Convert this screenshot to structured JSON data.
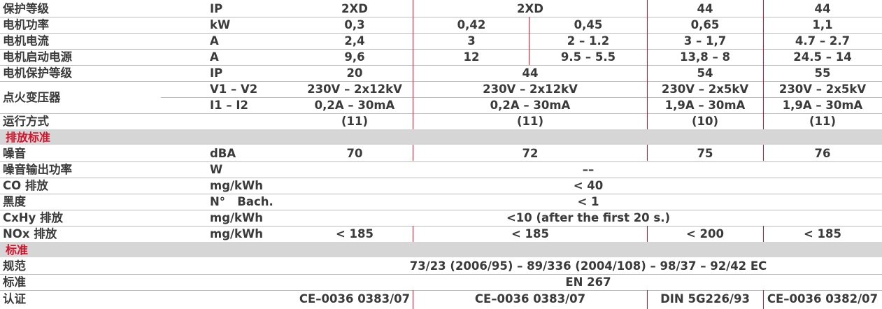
{
  "rows": {
    "protection": {
      "label": "保护等级",
      "unit": "IP",
      "v1": "2XD",
      "v2": "2XD",
      "v3": "44",
      "v4": "44"
    },
    "motor_power": {
      "label": "电机功率",
      "unit": "kW",
      "v1": "0,3",
      "v2a": "0,42",
      "v2b": "0,45",
      "v3": "0,65",
      "v4": "1,1"
    },
    "motor_current": {
      "label": "电机电流",
      "unit": "A",
      "v1": "2,4",
      "v2a": "3",
      "v2b": "2 – 1.2",
      "v3": "3 – 1,7",
      "v4": "4.7 – 2.7"
    },
    "motor_start": {
      "label": "电机启动电源",
      "unit": "A",
      "v1": "9,6",
      "v2a": "12",
      "v2b": "9.5 – 5.5",
      "v3": "13,8 – 8",
      "v4": "24.5 – 14"
    },
    "motor_ip": {
      "label": "电机保护等级",
      "unit": "IP",
      "v1": "20",
      "v2": "44",
      "v3": "54",
      "v4": "55"
    },
    "ignition": {
      "label": "点火变压器",
      "unit1": "V1 – V2",
      "v1_1": "230V – 2x12kV",
      "v2_1": "230V – 2x12kV",
      "v3_1": "230V – 2x5kV",
      "v4_1": "230V – 2x5kV",
      "unit2": "I1 – I2",
      "v1_2": "0,2A – 30mA",
      "v2_2": "0,2A – 30mA",
      "v3_2": "1,9A – 30mA",
      "v4_2": "1,9A – 30mA"
    },
    "operation": {
      "label": "运行方式",
      "v1": "(11)",
      "v2": "(11)",
      "v3": "(10)",
      "v4": "(11)"
    },
    "noise": {
      "label": "噪音",
      "unit": "dBA",
      "v1": "70",
      "v2": "72",
      "v3": "75",
      "v4": "76"
    },
    "noise_power": {
      "label": "噪音输出功率",
      "unit": "W",
      "value": "––"
    },
    "co": {
      "label": "CO 排放",
      "unit": "mg/kWh",
      "value": "< 40"
    },
    "smoke": {
      "label": "黑度",
      "unit": "N°   Bach.",
      "value": "< 1"
    },
    "cxhy": {
      "label": "CxHy 排放",
      "unit": "mg/kWh",
      "value": "<10 (after the first 20 s.)"
    },
    "nox": {
      "label": "NOx 排放",
      "unit": "mg/kWh",
      "v1": "< 185",
      "v2": "< 185",
      "v3": "< 200",
      "v4": "< 185"
    },
    "directive": {
      "label": "规范",
      "value": "73/23 (2006/95) – 89/336 (2004/108) – 98/37 – 92/42 EC"
    },
    "standard": {
      "label": "标准",
      "value": "EN 267"
    },
    "cert": {
      "label": "认证",
      "v1": "CE–0036 0383/07",
      "v2": "CE–0036 0383/07",
      "v3": "DIN 5G226/93",
      "v4": "CE–0036 0382/07"
    }
  },
  "sections": {
    "emission": "排放标准",
    "standards": "标准"
  },
  "colors": {
    "accent": "#d3122a",
    "band": "#d6d6d6",
    "text": "#3a3a3a"
  }
}
